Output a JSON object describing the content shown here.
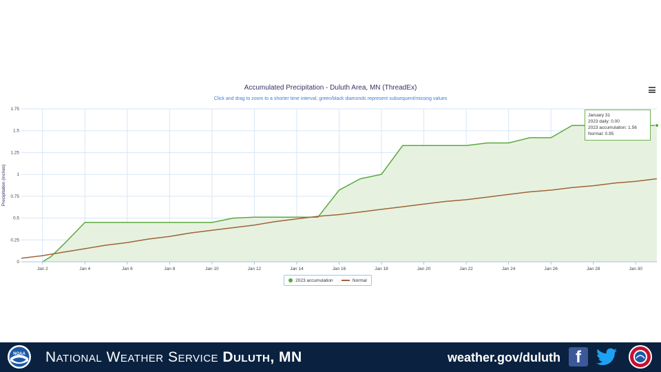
{
  "chart_data": {
    "type": "area",
    "title": "Accumulated Precipitation - Duluth Area, MN (ThreadEx)",
    "subtitle": "Click and drag to zoom to a shorter time interval; green/black diamonds represent subsequent/missing values",
    "ylabel": "Precipitation (inches)",
    "xlabel": "",
    "ylim": [
      0,
      1.75
    ],
    "yticks": [
      "0",
      "0.25",
      "0.5",
      "0.75",
      "1",
      "1.25",
      "1.5",
      "1.75"
    ],
    "xlim": [
      1,
      31
    ],
    "xtick_values": [
      2,
      4,
      6,
      8,
      10,
      12,
      14,
      16,
      18,
      20,
      22,
      24,
      26,
      28,
      30
    ],
    "xticks": [
      "Jan 2",
      "Jan 4",
      "Jan 6",
      "Jan 8",
      "Jan 10",
      "Jan 12",
      "Jan 14",
      "Jan 16",
      "Jan 18",
      "Jan 20",
      "Jan 22",
      "Jan 24",
      "Jan 26",
      "Jan 28",
      "Jan 30"
    ],
    "grid": true,
    "legend_position": "bottom-center",
    "series": [
      {
        "name": "2023 accumulation",
        "color": "#5aa83c",
        "fill": "#e6f2df",
        "x": [
          2.0,
          2.4,
          3.0,
          4.0,
          5.0,
          6.0,
          7.0,
          8.0,
          9.0,
          10.0,
          11.0,
          12.0,
          13.0,
          14.0,
          15.0,
          16.0,
          17.0,
          18.0,
          19.0,
          20.0,
          21.0,
          22.0,
          23.0,
          24.0,
          25.0,
          26.0,
          27.0,
          28.0,
          29.0,
          30.0,
          30.8,
          31.0
        ],
        "y": [
          0.0,
          0.06,
          0.2,
          0.45,
          0.45,
          0.45,
          0.45,
          0.45,
          0.45,
          0.45,
          0.5,
          0.51,
          0.51,
          0.51,
          0.51,
          0.82,
          0.95,
          1.0,
          1.33,
          1.33,
          1.33,
          1.33,
          1.36,
          1.36,
          1.42,
          1.42,
          1.56,
          1.56,
          1.56,
          1.56,
          1.56,
          1.56
        ]
      },
      {
        "name": "Normal",
        "color": "#a0623a",
        "x": [
          1,
          2,
          3,
          4,
          5,
          6,
          7,
          8,
          9,
          10,
          11,
          12,
          13,
          14,
          15,
          16,
          17,
          18,
          19,
          20,
          21,
          22,
          23,
          24,
          25,
          26,
          27,
          28,
          29,
          30,
          31
        ],
        "y": [
          0.04,
          0.07,
          0.11,
          0.15,
          0.19,
          0.22,
          0.26,
          0.29,
          0.33,
          0.36,
          0.39,
          0.42,
          0.46,
          0.49,
          0.52,
          0.54,
          0.57,
          0.6,
          0.63,
          0.66,
          0.69,
          0.71,
          0.74,
          0.77,
          0.8,
          0.82,
          0.85,
          0.87,
          0.9,
          0.92,
          0.95
        ]
      }
    ],
    "tooltip": {
      "date": "January 31",
      "daily": "2023 daily: 0.00",
      "accumulation": "2023 accumulation: 1.56",
      "normal": "Normal: 0.95"
    }
  },
  "legend": {
    "item1": "2023 accumulation",
    "item2": "Normal"
  },
  "footer": {
    "title_light": "National Weather Service",
    "title_bold": "Duluth, MN",
    "url": "weather.gov/duluth",
    "facebook_glyph": "f",
    "noaa_logo_text": "NOAA",
    "background": "#0a2240"
  }
}
